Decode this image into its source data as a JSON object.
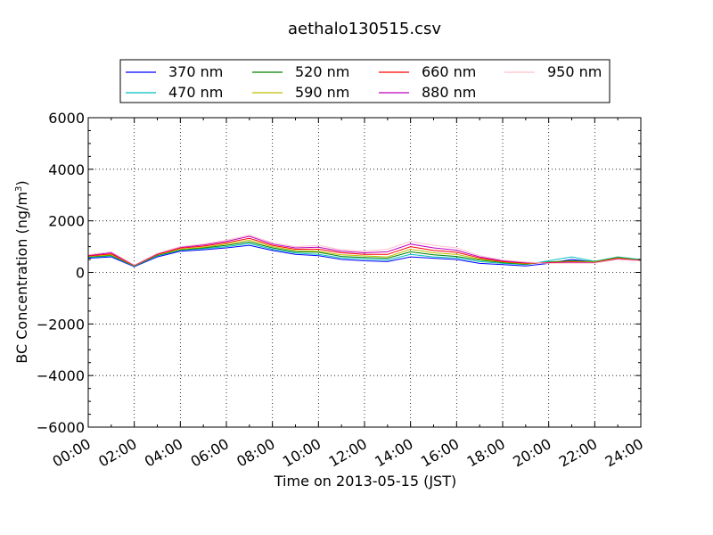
{
  "chart_data": {
    "type": "line",
    "title": "aethalo130515.csv",
    "xlabel": "Time on 2013-05-15 (JST)",
    "ylabel_main": "BC Concentration (ng/m",
    "ylabel_sup": "3",
    "ylabel_close": ")",
    "xlim": [
      "00:00",
      "24:00"
    ],
    "ylim": [
      -6000,
      6000
    ],
    "grid": true,
    "legend_position": "top-center",
    "x_ticks": [
      "00:00",
      "02:00",
      "04:00",
      "06:00",
      "08:00",
      "10:00",
      "12:00",
      "14:00",
      "16:00",
      "18:00",
      "20:00",
      "22:00",
      "24:00"
    ],
    "y_ticks": [
      "6000",
      "4000",
      "2000",
      "0",
      "−2000",
      "−4000",
      "−6000"
    ],
    "y_tick_values": [
      6000,
      4000,
      2000,
      0,
      -2000,
      -4000,
      -6000
    ],
    "x_hours": [
      0,
      1,
      2,
      3,
      4,
      5,
      6,
      7,
      8,
      9,
      10,
      11,
      12,
      13,
      14,
      15,
      16,
      17,
      18,
      19,
      20,
      21,
      22,
      23,
      24
    ],
    "series": [
      {
        "name": "370 nm",
        "color": "#0000ff",
        "values": [
          550,
          600,
          220,
          600,
          820,
          880,
          950,
          1050,
          850,
          700,
          650,
          500,
          450,
          420,
          600,
          550,
          500,
          350,
          300,
          250,
          350,
          500,
          400,
          550,
          450
        ]
      },
      {
        "name": "470 nm",
        "color": "#00bfbf",
        "values": [
          580,
          640,
          240,
          640,
          860,
          920,
          1000,
          1120,
          900,
          750,
          700,
          560,
          520,
          480,
          700,
          600,
          560,
          420,
          350,
          300,
          450,
          600,
          430,
          600,
          500
        ]
      },
      {
        "name": "520 nm",
        "color": "#008000",
        "values": [
          600,
          660,
          250,
          660,
          880,
          950,
          1050,
          1180,
          950,
          800,
          780,
          620,
          580,
          550,
          800,
          680,
          620,
          480,
          380,
          320,
          400,
          450,
          420,
          580,
          480
        ]
      },
      {
        "name": "590 nm",
        "color": "#bfbf00",
        "values": [
          620,
          680,
          260,
          680,
          900,
          980,
          1100,
          1250,
          1000,
          850,
          820,
          680,
          640,
          600,
          900,
          760,
          700,
          520,
          400,
          340,
          380,
          420,
          400,
          560,
          470
        ]
      },
      {
        "name": "660 nm",
        "color": "#ff0000",
        "values": [
          640,
          720,
          270,
          700,
          940,
          1020,
          1150,
          1320,
          1050,
          900,
          900,
          760,
          700,
          700,
          1000,
          850,
          780,
          560,
          420,
          360,
          380,
          400,
          380,
          540,
          460
        ]
      },
      {
        "name": "880 nm",
        "color": "#bf00bf",
        "values": [
          660,
          760,
          280,
          720,
          980,
          1060,
          1200,
          1400,
          1100,
          950,
          980,
          820,
          760,
          800,
          1100,
          950,
          860,
          600,
          450,
          380,
          360,
          380,
          370,
          520,
          450
        ]
      },
      {
        "name": "950 nm",
        "color": "#ffc0cb",
        "values": [
          680,
          800,
          290,
          740,
          1000,
          1100,
          1250,
          1450,
          1150,
          1000,
          1050,
          880,
          820,
          900,
          1200,
          1050,
          950,
          650,
          480,
          400,
          350,
          360,
          360,
          500,
          440
        ]
      }
    ]
  }
}
